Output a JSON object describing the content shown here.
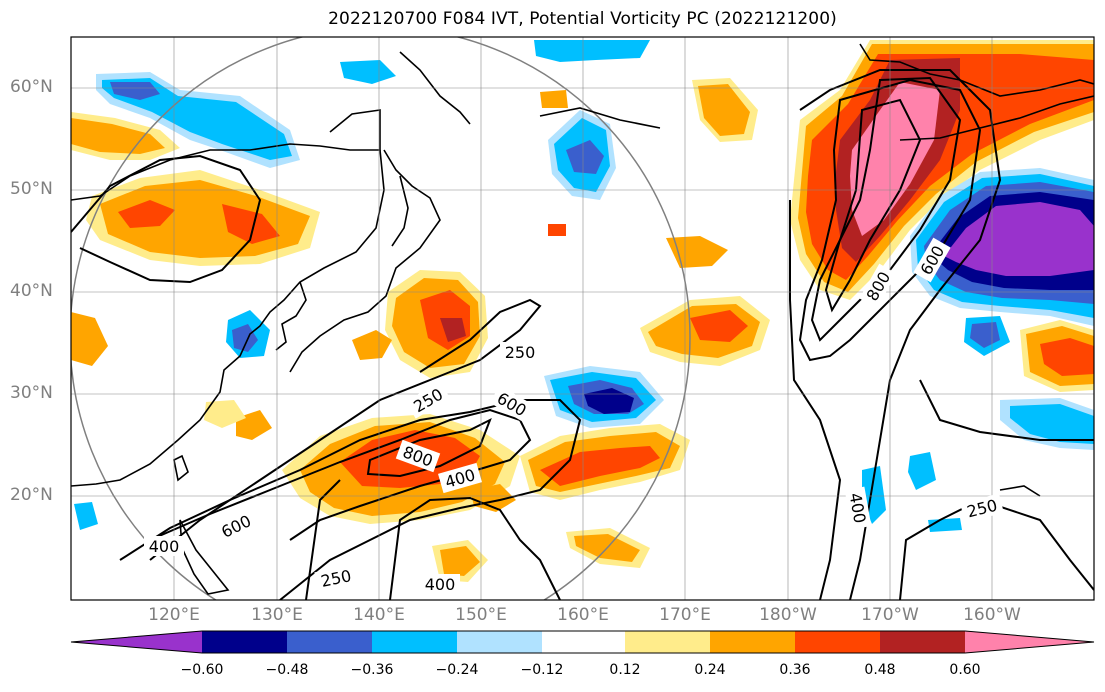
{
  "title": "2022120700 F084 IVT, Potential Vorticity PC (2022121200)",
  "lat_labels": [
    "60°N",
    "50°N",
    "40°N",
    "30°N",
    "20°N"
  ],
  "lon_labels": [
    "120°E",
    "130°E",
    "140°E",
    "150°E",
    "160°E",
    "170°E",
    "180°W",
    "170°W",
    "160°W"
  ],
  "contour_labels": [
    "250",
    "250",
    "250",
    "250",
    "400",
    "400",
    "400",
    "600",
    "600",
    "600",
    "800",
    "800"
  ],
  "colorbar": {
    "tick_labels": [
      "−0.60",
      "−0.48",
      "−0.36",
      "−0.24",
      "−0.12",
      "0.12",
      "0.24",
      "0.36",
      "0.48",
      "0.60"
    ],
    "colors": [
      "#9932cc",
      "#00008b",
      "#3a5fcd",
      "#00bfff",
      "#b0e2ff",
      "#ffffff",
      "#ffec8b",
      "#ffa500",
      "#ff4500",
      "#b22222",
      "#ff82ab"
    ]
  }
}
